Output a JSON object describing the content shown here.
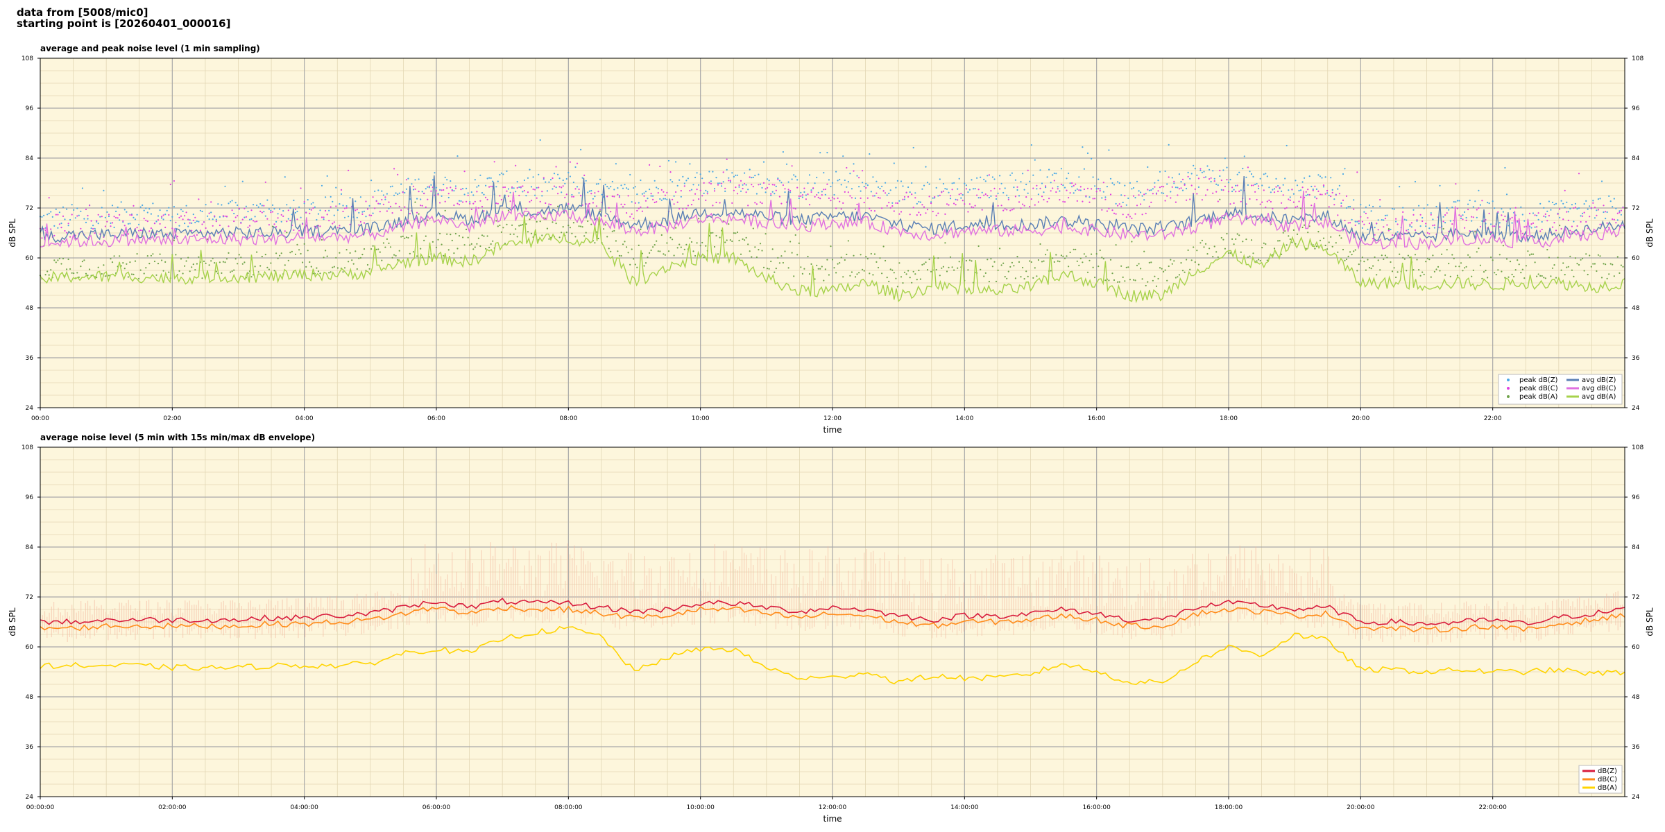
{
  "header": {
    "source_line": "data from [5008/mic0]",
    "start_line": "starting point is [20260401_000016]"
  },
  "colors": {
    "background": "#fdf6dc",
    "peak_z": "#4aa8e6",
    "peak_c": "#e040e0",
    "peak_a": "#6fa34a",
    "avg_z": "#5a7fb5",
    "avg_c": "#e070e0",
    "avg_a": "#a6d24a",
    "z": "#d81b3c",
    "c": "#ff8c1a",
    "a": "#ffd400",
    "envelope": "#f4b8a0"
  },
  "chart_data": [
    {
      "type": "line",
      "title": "average and peak noise level (1 min sampling)",
      "xlabel": "time",
      "ylabel": "dB SPL",
      "ylim": [
        24,
        108
      ],
      "xlim_hours": [
        0,
        24
      ],
      "yticks": [
        "24",
        "36",
        "48",
        "60",
        "72",
        "84",
        "96",
        "108"
      ],
      "xtick_labels": [
        "00:00",
        "02:00",
        "04:00",
        "06:00",
        "08:00",
        "10:00",
        "12:00",
        "14:00",
        "16:00",
        "18:00",
        "20:00",
        "22:00"
      ],
      "grid": true,
      "legend_position": "bottom-right",
      "x_hours": [
        0,
        0.5,
        1,
        1.5,
        2,
        2.5,
        3,
        3.5,
        4,
        4.5,
        5,
        5.5,
        6,
        6.5,
        7,
        7.5,
        8,
        8.5,
        9,
        9.5,
        10,
        10.5,
        11,
        11.5,
        12,
        12.5,
        13,
        13.5,
        14,
        14.5,
        15,
        15.5,
        16,
        16.5,
        17,
        17.5,
        18,
        18.5,
        19,
        19.5,
        20,
        20.5,
        21,
        21.5,
        22,
        22.5,
        23,
        23.5,
        24
      ],
      "series": [
        {
          "name": "peak dB(Z)",
          "kind": "scatter",
          "values": [
            69,
            70,
            70,
            71,
            70,
            70,
            71,
            71,
            71,
            72,
            73,
            76,
            78,
            76,
            78,
            77,
            78,
            76,
            75,
            77,
            78,
            79,
            78,
            77,
            78,
            77,
            76,
            76,
            77,
            77,
            78,
            79,
            77,
            75,
            78,
            80,
            79,
            78,
            77,
            78,
            70,
            69,
            70,
            71,
            71,
            70,
            71,
            72,
            72
          ]
        },
        {
          "name": "peak dB(C)",
          "kind": "scatter",
          "values": [
            67,
            68,
            68,
            69,
            68,
            68,
            69,
            69,
            69,
            70,
            71,
            73,
            75,
            73,
            75,
            74,
            75,
            73,
            72,
            74,
            75,
            76,
            75,
            74,
            75,
            74,
            73,
            73,
            74,
            74,
            75,
            76,
            74,
            72,
            75,
            77,
            76,
            75,
            74,
            75,
            68,
            67,
            68,
            69,
            69,
            68,
            69,
            70,
            70
          ]
        },
        {
          "name": "peak dB(A)",
          "kind": "scatter",
          "values": [
            58,
            58,
            58,
            58,
            58,
            58,
            58,
            59,
            59,
            59,
            60,
            63,
            63,
            63,
            66,
            67,
            68,
            66,
            60,
            62,
            63,
            64,
            60,
            58,
            57,
            59,
            56,
            58,
            57,
            57,
            58,
            60,
            58,
            56,
            56,
            61,
            64,
            61,
            65,
            65,
            58,
            58,
            58,
            58,
            58,
            58,
            58,
            58,
            58
          ]
        },
        {
          "name": "avg dB(Z)",
          "kind": "line",
          "values": [
            65,
            65.5,
            65.5,
            66,
            65.5,
            66,
            66,
            66,
            66.5,
            66.5,
            67,
            69,
            71,
            69,
            72,
            71,
            72,
            70,
            68,
            69,
            71,
            71,
            70,
            69,
            70,
            70,
            68,
            67,
            68,
            68,
            68,
            69,
            68,
            67,
            67,
            69,
            71,
            70,
            69,
            70,
            65,
            65,
            65,
            66,
            66,
            65,
            66,
            67,
            68
          ]
        },
        {
          "name": "avg dB(C)",
          "kind": "line",
          "values": [
            63.5,
            64,
            64,
            64.5,
            64,
            64.5,
            64.5,
            64.5,
            65,
            65,
            65.5,
            67.5,
            69.5,
            67.5,
            70.5,
            69.5,
            70.5,
            68.5,
            66.5,
            67.5,
            69.5,
            69.5,
            68.5,
            67.5,
            68.5,
            68.5,
            66.5,
            65.5,
            66.5,
            66.5,
            66.5,
            67.5,
            66.5,
            65.5,
            65.5,
            67.5,
            69.5,
            68.5,
            67.5,
            68.5,
            63.5,
            63.5,
            63.5,
            64.5,
            64.5,
            63.5,
            64.5,
            65.5,
            66.5
          ]
        },
        {
          "name": "avg dB(A)",
          "kind": "line",
          "values": [
            55,
            55.5,
            55.5,
            55.5,
            55,
            55.5,
            55.5,
            55.5,
            56,
            56,
            56.5,
            59,
            60,
            59,
            63,
            64,
            65,
            63,
            54,
            58,
            60,
            60,
            55,
            52,
            52,
            54,
            51,
            53,
            52,
            52,
            53,
            56,
            54,
            51,
            51,
            57,
            61,
            58,
            64,
            62,
            54,
            54,
            53.5,
            54,
            53.5,
            54,
            54,
            53,
            54
          ]
        }
      ]
    },
    {
      "type": "line",
      "title": "average noise level (5 min with 15s min/max dB envelope)",
      "xlabel": "time",
      "ylabel": "dB SPL",
      "ylim": [
        24,
        108
      ],
      "xlim_hours": [
        0,
        24
      ],
      "yticks": [
        "24",
        "36",
        "48",
        "60",
        "72",
        "84",
        "96",
        "108"
      ],
      "xtick_labels": [
        "00:00:00",
        "02:00:00",
        "04:00:00",
        "06:00:00",
        "08:00:00",
        "10:00:00",
        "12:00:00",
        "14:00:00",
        "16:00:00",
        "18:00:00",
        "20:00:00",
        "22:00:00"
      ],
      "grid": true,
      "legend_position": "bottom-right",
      "x_hours": [
        0,
        0.5,
        1,
        1.5,
        2,
        2.5,
        3,
        3.5,
        4,
        4.5,
        5,
        5.5,
        6,
        6.5,
        7,
        7.5,
        8,
        8.5,
        9,
        9.5,
        10,
        10.5,
        11,
        11.5,
        12,
        12.5,
        13,
        13.5,
        14,
        14.5,
        15,
        15.5,
        16,
        16.5,
        17,
        17.5,
        18,
        18.5,
        19,
        19.5,
        20,
        20.5,
        21,
        21.5,
        22,
        22.5,
        23,
        23.5,
        24
      ],
      "series": [
        {
          "name": "dB(Z)",
          "values": [
            66,
            66,
            66.5,
            66.5,
            66.5,
            66.5,
            66.5,
            67,
            67,
            67.5,
            68,
            69.5,
            71,
            69.5,
            71,
            70.5,
            70.5,
            69.5,
            68.5,
            69,
            70.5,
            70.5,
            69.5,
            68.5,
            69.5,
            69,
            67.5,
            66.5,
            67.5,
            67.5,
            68,
            69,
            68,
            66.5,
            66.5,
            69.5,
            70.5,
            70,
            69,
            69.5,
            66,
            66,
            65.5,
            66,
            66.5,
            65.5,
            67,
            68,
            69
          ]
        },
        {
          "name": "dB(C)",
          "values": [
            64.5,
            64.5,
            65,
            65,
            65,
            65,
            65,
            65.5,
            65.5,
            66,
            66.5,
            68,
            69.5,
            68,
            69.5,
            69,
            69,
            68,
            67,
            67.5,
            69,
            69,
            68,
            67,
            68,
            67.5,
            66,
            65,
            66,
            66,
            66.5,
            67.5,
            66.5,
            65,
            65,
            68,
            69,
            68.5,
            67.5,
            68,
            64.5,
            64.5,
            64,
            64.5,
            65,
            64,
            65.5,
            66.5,
            67.5
          ]
        },
        {
          "name": "dB(A)",
          "values": [
            55.5,
            55.5,
            55.5,
            55.5,
            55,
            55,
            55,
            55.5,
            55.5,
            55.5,
            56,
            58.5,
            59.5,
            58.5,
            62,
            63.5,
            64.5,
            62.5,
            54,
            57.5,
            59.5,
            59.5,
            55,
            52.5,
            52.5,
            54,
            51.5,
            53,
            52.5,
            52.5,
            53.5,
            56,
            54,
            51.5,
            51.5,
            56.5,
            60,
            58,
            63,
            61.5,
            54.5,
            54.5,
            54,
            54.5,
            54,
            54,
            54.5,
            53.5,
            54
          ]
        }
      ]
    }
  ]
}
